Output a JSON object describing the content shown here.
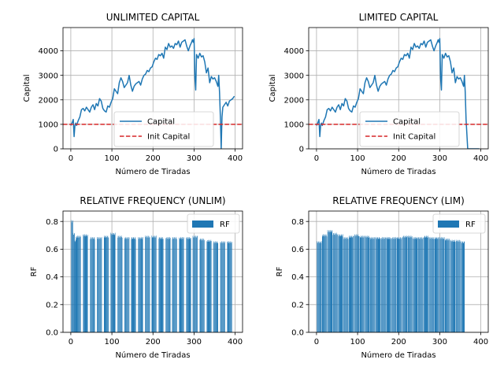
{
  "chart_data": [
    {
      "type": "line",
      "title": "UNLIMITED CAPITAL",
      "xlabel": "Número de Tiradas",
      "ylabel": "Capital",
      "xlim": [
        -19,
        418
      ],
      "ylim": [
        0,
        4950
      ],
      "xticks": [
        0,
        100,
        200,
        300,
        400
      ],
      "yticks": [
        0,
        1000,
        2000,
        3000,
        4000
      ],
      "grid": true,
      "legend": "lower-center",
      "series": [
        {
          "name": "Capital",
          "color": "#1f77b4",
          "style": "solid",
          "x": [
            0,
            4,
            6,
            8,
            10,
            12,
            14,
            18,
            22,
            26,
            30,
            34,
            38,
            42,
            46,
            50,
            54,
            58,
            62,
            66,
            70,
            74,
            78,
            82,
            86,
            90,
            94,
            98,
            102,
            106,
            110,
            114,
            118,
            122,
            126,
            130,
            134,
            138,
            142,
            146,
            150,
            154,
            158,
            162,
            166,
            170,
            174,
            178,
            182,
            186,
            190,
            194,
            198,
            202,
            206,
            210,
            214,
            218,
            222,
            226,
            230,
            234,
            238,
            242,
            246,
            250,
            254,
            258,
            262,
            266,
            270,
            274,
            278,
            282,
            286,
            290,
            294,
            296,
            298,
            300,
            302,
            304,
            306,
            310,
            314,
            318,
            322,
            326,
            330,
            334,
            338,
            342,
            346,
            350,
            354,
            358,
            360,
            362,
            364,
            366,
            368,
            370,
            374,
            378,
            382,
            386,
            390,
            394,
            398
          ],
          "y": [
            950,
            1100,
            1200,
            500,
            950,
            1050,
            950,
            1150,
            1300,
            1600,
            1650,
            1550,
            1700,
            1600,
            1500,
            1700,
            1800,
            1600,
            1850,
            1750,
            2050,
            1950,
            1650,
            1550,
            1500,
            1750,
            1700,
            1900,
            2050,
            2450,
            2350,
            2250,
            2700,
            2900,
            2750,
            2500,
            2600,
            2700,
            3000,
            2600,
            2350,
            2550,
            2650,
            2700,
            2750,
            2600,
            2850,
            3000,
            3050,
            3200,
            3150,
            3300,
            3350,
            3550,
            3700,
            3650,
            3850,
            3800,
            3900,
            3700,
            4150,
            4050,
            4300,
            4150,
            4200,
            4100,
            4300,
            4250,
            4400,
            4150,
            4350,
            4400,
            4450,
            4200,
            4000,
            4200,
            4350,
            4450,
            4350,
            4500,
            2900,
            2400,
            3850,
            3700,
            3900,
            3750,
            3800,
            3550,
            3100,
            3300,
            2700,
            2950,
            2850,
            2900,
            2750,
            2550,
            3000,
            2300,
            1300,
            0,
            1300,
            1700,
            1800,
            1900,
            1750,
            1950,
            2000,
            2050,
            2150
          ]
        },
        {
          "name": "Init Capital",
          "color": "#d62728",
          "style": "dashed",
          "x": [
            -19,
            418
          ],
          "y": [
            1000,
            1000
          ]
        }
      ]
    },
    {
      "type": "line",
      "title": "LIMITED CAPITAL",
      "xlabel": "Número de Tiradas",
      "ylabel": "Capital",
      "xlim": [
        -19,
        418
      ],
      "ylim": [
        0,
        4950
      ],
      "xticks": [
        0,
        100,
        200,
        300,
        400
      ],
      "yticks": [
        0,
        1000,
        2000,
        3000,
        4000
      ],
      "grid": true,
      "legend": "lower-center",
      "series": [
        {
          "name": "Capital",
          "color": "#1f77b4",
          "style": "solid",
          "x": [
            0,
            4,
            6,
            8,
            10,
            12,
            14,
            18,
            22,
            26,
            30,
            34,
            38,
            42,
            46,
            50,
            54,
            58,
            62,
            66,
            70,
            74,
            78,
            82,
            86,
            90,
            94,
            98,
            102,
            106,
            110,
            114,
            118,
            122,
            126,
            130,
            134,
            138,
            142,
            146,
            150,
            154,
            158,
            162,
            166,
            170,
            174,
            178,
            182,
            186,
            190,
            194,
            198,
            202,
            206,
            210,
            214,
            218,
            222,
            226,
            230,
            234,
            238,
            242,
            246,
            250,
            254,
            258,
            262,
            266,
            270,
            274,
            278,
            282,
            286,
            290,
            294,
            296,
            298,
            300,
            302,
            304,
            306,
            310,
            314,
            318,
            322,
            326,
            330,
            334,
            338,
            342,
            346,
            350,
            354,
            358,
            360,
            362,
            364,
            368,
            376,
            386,
            396
          ],
          "y": [
            950,
            1100,
            1200,
            500,
            950,
            1050,
            950,
            1150,
            1300,
            1600,
            1650,
            1550,
            1700,
            1600,
            1500,
            1700,
            1800,
            1600,
            1850,
            1750,
            2050,
            1950,
            1650,
            1550,
            1500,
            1750,
            1700,
            1900,
            2050,
            2450,
            2350,
            2250,
            2700,
            2900,
            2750,
            2500,
            2600,
            2700,
            3000,
            2600,
            2350,
            2550,
            2650,
            2700,
            2750,
            2600,
            2850,
            3000,
            3050,
            3200,
            3150,
            3300,
            3350,
            3550,
            3700,
            3650,
            3850,
            3800,
            3900,
            3700,
            4150,
            4050,
            4300,
            4150,
            4200,
            4100,
            4300,
            4250,
            4400,
            4150,
            4350,
            4400,
            4450,
            4200,
            4000,
            4200,
            4350,
            4450,
            4350,
            4500,
            2900,
            2400,
            3850,
            3700,
            3900,
            3750,
            3800,
            3550,
            3100,
            3300,
            2700,
            2950,
            2850,
            2900,
            2750,
            2550,
            3000,
            2300,
            1200,
            0,
            0,
            0,
            0
          ]
        },
        {
          "name": "Init Capital",
          "color": "#d62728",
          "style": "dashed",
          "x": [
            -19,
            418
          ],
          "y": [
            1000,
            1000
          ]
        }
      ]
    },
    {
      "type": "bar",
      "title": "RELATIVE FREQUENCY (UNLIM)",
      "xlabel": "Número de Tiradas",
      "ylabel": "RF",
      "xlim": [
        -19,
        418
      ],
      "ylim": [
        0,
        0.875
      ],
      "xticks": [
        0,
        100,
        200,
        300,
        400
      ],
      "yticks": [
        0.0,
        0.2,
        0.4,
        0.6,
        0.8
      ],
      "grid": true,
      "legend": "top-right",
      "series": [
        {
          "name": "RF",
          "color": "#1f77b4",
          "groups": [
            {
              "x_start": 1,
              "x_end": 5,
              "value": 0.8
            },
            {
              "x_start": 5,
              "x_end": 9,
              "value": 0.71
            },
            {
              "x_start": 9,
              "x_end": 12,
              "value": 0.66
            },
            {
              "x_start": 13,
              "x_end": 24,
              "value": 0.69
            },
            {
              "x_start": 30,
              "x_end": 41,
              "value": 0.7
            },
            {
              "x_start": 47,
              "x_end": 58,
              "value": 0.68
            },
            {
              "x_start": 64,
              "x_end": 75,
              "value": 0.68
            },
            {
              "x_start": 81,
              "x_end": 92,
              "value": 0.69
            },
            {
              "x_start": 97,
              "x_end": 108,
              "value": 0.71
            },
            {
              "x_start": 114,
              "x_end": 125,
              "value": 0.69
            },
            {
              "x_start": 131,
              "x_end": 142,
              "value": 0.68
            },
            {
              "x_start": 147,
              "x_end": 158,
              "value": 0.68
            },
            {
              "x_start": 164,
              "x_end": 175,
              "value": 0.68
            },
            {
              "x_start": 181,
              "x_end": 192,
              "value": 0.69
            },
            {
              "x_start": 197,
              "x_end": 208,
              "value": 0.69
            },
            {
              "x_start": 214,
              "x_end": 225,
              "value": 0.68
            },
            {
              "x_start": 231,
              "x_end": 242,
              "value": 0.68
            },
            {
              "x_start": 247,
              "x_end": 258,
              "value": 0.68
            },
            {
              "x_start": 264,
              "x_end": 275,
              "value": 0.68
            },
            {
              "x_start": 281,
              "x_end": 292,
              "value": 0.68
            },
            {
              "x_start": 297,
              "x_end": 308,
              "value": 0.69
            },
            {
              "x_start": 314,
              "x_end": 325,
              "value": 0.67
            },
            {
              "x_start": 331,
              "x_end": 342,
              "value": 0.66
            },
            {
              "x_start": 347,
              "x_end": 358,
              "value": 0.65
            },
            {
              "x_start": 364,
              "x_end": 375,
              "value": 0.65
            },
            {
              "x_start": 381,
              "x_end": 392,
              "value": 0.65
            }
          ]
        }
      ]
    },
    {
      "type": "bar",
      "title": "RELATIVE FREQUENCY (LIM)",
      "xlabel": "Número de Tiradas",
      "ylabel": "RF",
      "xlim": [
        -19,
        418
      ],
      "ylim": [
        0,
        0.875
      ],
      "xticks": [
        0,
        100,
        200,
        300,
        400
      ],
      "yticks": [
        0.0,
        0.2,
        0.4,
        0.6,
        0.8
      ],
      "grid": true,
      "legend": "top-right",
      "series": [
        {
          "name": "RF",
          "color": "#1f77b4",
          "groups": [
            {
              "x_start": 1,
              "x_end": 12,
              "value": 0.65
            },
            {
              "x_start": 14,
              "x_end": 25,
              "value": 0.7
            },
            {
              "x_start": 27,
              "x_end": 38,
              "value": 0.73
            },
            {
              "x_start": 40,
              "x_end": 51,
              "value": 0.71
            },
            {
              "x_start": 53,
              "x_end": 64,
              "value": 0.7
            },
            {
              "x_start": 66,
              "x_end": 77,
              "value": 0.68
            },
            {
              "x_start": 79,
              "x_end": 90,
              "value": 0.69
            },
            {
              "x_start": 92,
              "x_end": 103,
              "value": 0.7
            },
            {
              "x_start": 105,
              "x_end": 116,
              "value": 0.69
            },
            {
              "x_start": 118,
              "x_end": 129,
              "value": 0.69
            },
            {
              "x_start": 131,
              "x_end": 142,
              "value": 0.68
            },
            {
              "x_start": 144,
              "x_end": 155,
              "value": 0.68
            },
            {
              "x_start": 157,
              "x_end": 168,
              "value": 0.68
            },
            {
              "x_start": 170,
              "x_end": 181,
              "value": 0.68
            },
            {
              "x_start": 183,
              "x_end": 194,
              "value": 0.68
            },
            {
              "x_start": 196,
              "x_end": 207,
              "value": 0.68
            },
            {
              "x_start": 209,
              "x_end": 220,
              "value": 0.69
            },
            {
              "x_start": 222,
              "x_end": 233,
              "value": 0.69
            },
            {
              "x_start": 235,
              "x_end": 246,
              "value": 0.68
            },
            {
              "x_start": 248,
              "x_end": 259,
              "value": 0.68
            },
            {
              "x_start": 261,
              "x_end": 272,
              "value": 0.69
            },
            {
              "x_start": 274,
              "x_end": 285,
              "value": 0.68
            },
            {
              "x_start": 287,
              "x_end": 298,
              "value": 0.68
            },
            {
              "x_start": 300,
              "x_end": 311,
              "value": 0.68
            },
            {
              "x_start": 313,
              "x_end": 324,
              "value": 0.67
            },
            {
              "x_start": 326,
              "x_end": 337,
              "value": 0.66
            },
            {
              "x_start": 339,
              "x_end": 350,
              "value": 0.66
            },
            {
              "x_start": 352,
              "x_end": 360,
              "value": 0.65
            }
          ]
        }
      ]
    }
  ]
}
